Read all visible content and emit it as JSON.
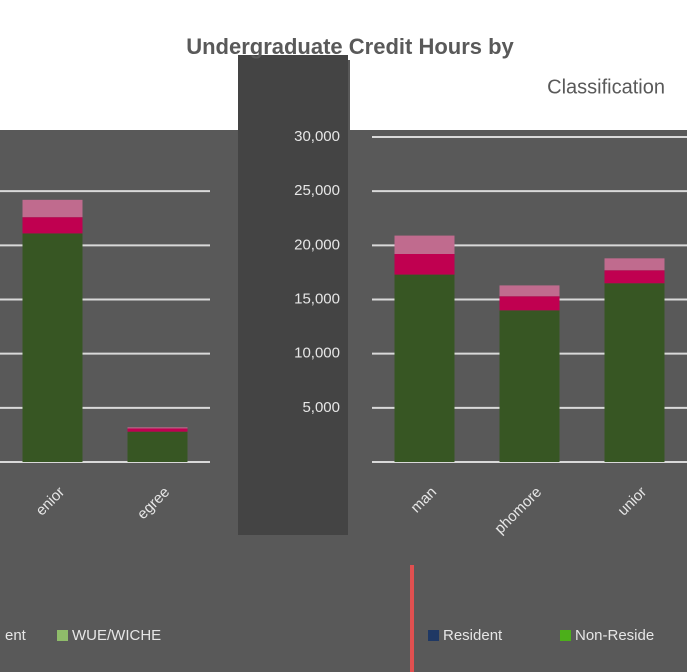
{
  "chart_data": [
    {
      "type": "stacked_bar",
      "title_lines": [
        "Undergraduate Credit Hours by",
        "Classification"
      ],
      "categories": [
        "enior",
        "egree"
      ],
      "series": [
        {
          "name": "ent",
          "color": "#375623",
          "values": [
            21100,
            2800
          ]
        },
        {
          "name": "WUE/WICHE",
          "color": "#c00050",
          "legend_color": "#8fbc6a",
          "values": [
            1500,
            300
          ]
        },
        {
          "color": "#c06b8e",
          "values": [
            1600,
            100
          ]
        }
      ],
      "ylim": [
        0,
        30000
      ],
      "yticks": [
        5000,
        10000,
        15000,
        20000,
        25000
      ],
      "grid": true,
      "show_tick_labels": false
    },
    {
      "type": "stacked_bar",
      "categories": [
        "man",
        "phomore",
        "unior"
      ],
      "series": [
        {
          "name": "Resident",
          "color": "#375623",
          "legend_color": "#1f3864",
          "values": [
            17300,
            14000,
            16500
          ]
        },
        {
          "name": "Non-Reside",
          "color": "#c00050",
          "legend_color": "#4caf1a",
          "values": [
            1900,
            1300,
            1200
          ]
        },
        {
          "color": "#c06b8e",
          "values": [
            1700,
            1000,
            1100
          ]
        }
      ],
      "ylim": [
        0,
        30000
      ],
      "yticks": [
        {
          "value": 5000,
          "label": "5,000"
        },
        {
          "value": 10000,
          "label": "10,000"
        },
        {
          "value": 15000,
          "label": "15,000"
        },
        {
          "value": 20000,
          "label": "20,000"
        },
        {
          "value": 25000,
          "label": "25,000"
        },
        {
          "value": 30000,
          "label": "30,000"
        }
      ],
      "grid": true,
      "show_tick_labels": true
    }
  ]
}
